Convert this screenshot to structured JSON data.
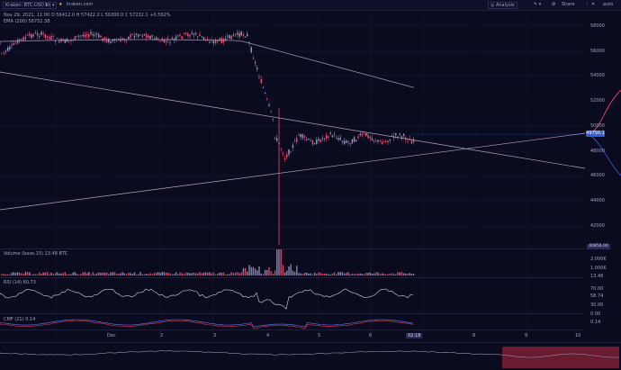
{
  "toolbar": {
    "date": "Nov 29, 2021",
    "exchange": "Kraken: BTC-USD",
    "interval": "1h",
    "site": "kraken.com",
    "analysis": "Analysis",
    "share": "Share",
    "auto": "auto"
  },
  "ohlc": {
    "time": "11:00",
    "open": "56412.0",
    "high": "57422.2",
    "low": "56300.0",
    "close": "57232.1",
    "change": "+0.562%"
  },
  "indicators": {
    "ema": "EMA (200)",
    "ema_value": "56752.38",
    "volume": "Volume (base,15)",
    "volume_value": "13.48 BTC",
    "rsi": "RSI (14)",
    "rsi_value": "60.73",
    "cmf": "CMF (21)",
    "cmf_value": "0.14"
  },
  "price_axis": [
    "58000",
    "56000",
    "54000",
    "52000",
    "50000",
    "48000",
    "46000",
    "44000",
    "42000"
  ],
  "current_price": "49750.1",
  "low_marker": "40856.00",
  "volume_axis": [
    "2.000K",
    "1.000K",
    "13.48"
  ],
  "rsi_axis": [
    "70.00",
    "58.74",
    "30.00"
  ],
  "cmf_axis": [
    "0.00",
    "0.14"
  ],
  "time_axis": [
    "Dec",
    "2",
    "3",
    "4",
    "5",
    "6",
    "02:18",
    "8",
    "9",
    "10"
  ],
  "colors": {
    "background": "#0b0b20",
    "bull": "#9aa0c8",
    "bear": "#ff4d72",
    "ema_line": "#9b8fb2",
    "trendline": "#b4a3b6",
    "highlight": "#3a5bd9"
  }
}
